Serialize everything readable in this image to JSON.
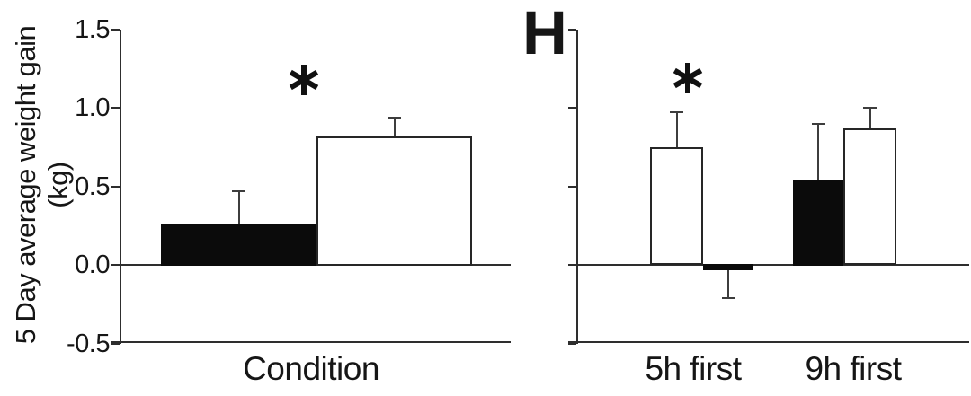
{
  "figure": {
    "ylabel_line1": "5 Day average weight gain",
    "ylabel_line2": "(kg)",
    "background": "#ffffff"
  },
  "colors": {
    "axis_line": "#2e2e2e",
    "error_bar": "#3d3d3d",
    "bar_black_fill": "#0b0b0b",
    "bar_white_fill": "#ffffff",
    "bar_border": "#262626",
    "text": "#161616"
  },
  "chart_data": [
    {
      "id": "left-panel",
      "type": "bar",
      "title": "",
      "xlabel": "Condition",
      "ylabel": "5 Day average weight gain (kg)",
      "ylim": [
        -0.5,
        1.5
      ],
      "yticks": [
        "1.5",
        "1.0",
        "0.5",
        "0.0",
        "-0.5"
      ],
      "yticks_labeled": true,
      "grid": false,
      "legend": "none",
      "groups": [
        {
          "label": "Condition",
          "significance": "*",
          "bars": [
            {
              "series": "black",
              "fill": "black",
              "value": 0.26,
              "error": 0.21,
              "error_direction": "up"
            },
            {
              "series": "white",
              "fill": "white",
              "value": 0.82,
              "error": 0.12,
              "error_direction": "up"
            }
          ]
        }
      ]
    },
    {
      "id": "right-panel",
      "type": "bar",
      "panel_label": "H",
      "title": "",
      "xlabel": "",
      "ylim": [
        -0.5,
        1.5
      ],
      "yticks": [
        "1.5",
        "1.0",
        "0.5",
        "0.0",
        "-0.5"
      ],
      "yticks_labeled": false,
      "grid": false,
      "legend": "none",
      "groups": [
        {
          "label": "5h first",
          "significance": "*",
          "bars": [
            {
              "series": "white",
              "fill": "white",
              "value": 0.75,
              "error": 0.22,
              "error_direction": "up"
            },
            {
              "series": "black",
              "fill": "black",
              "value": -0.04,
              "error": 0.17,
              "error_direction": "down"
            }
          ]
        },
        {
          "label": "9h first",
          "bars": [
            {
              "series": "black",
              "fill": "black",
              "value": 0.54,
              "error": 0.36,
              "error_direction": "up"
            },
            {
              "series": "white",
              "fill": "white",
              "value": 0.87,
              "error": 0.13,
              "error_direction": "up"
            }
          ]
        }
      ]
    }
  ]
}
